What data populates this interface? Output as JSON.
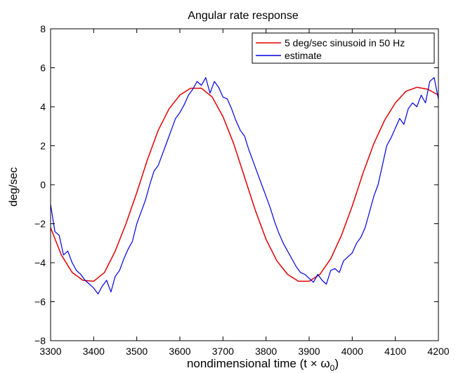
{
  "chart_data": {
    "type": "line",
    "title": "Angular rate response",
    "xlabel_main": "nondimensional time (t × ω",
    "xlabel_sub": "0",
    "xlabel_close": ")",
    "ylabel": "deg/sec",
    "xlim": [
      3300,
      4200
    ],
    "ylim": [
      -8,
      8
    ],
    "xticks": [
      3300,
      3400,
      3500,
      3600,
      3700,
      3800,
      3900,
      4000,
      4100,
      4200
    ],
    "yticks": [
      -8,
      -6,
      -4,
      -2,
      0,
      2,
      4,
      6,
      8
    ],
    "xtick_labels": [
      "3300",
      "3400",
      "3500",
      "3600",
      "3700",
      "3800",
      "3900",
      "4000",
      "4100",
      "4200"
    ],
    "ytick_labels": [
      "−8",
      "−6",
      "−4",
      "−2",
      "0",
      "2",
      "4",
      "6",
      "8"
    ],
    "grid": false,
    "legend_position": "top-right",
    "series": [
      {
        "name": "5 deg/sec sinusoid in 50 Hz",
        "color": "#e00000",
        "x": [
          3300,
          3325,
          3350,
          3375,
          3400,
          3425,
          3450,
          3475,
          3500,
          3525,
          3550,
          3575,
          3600,
          3625,
          3650,
          3675,
          3700,
          3725,
          3750,
          3775,
          3800,
          3825,
          3850,
          3875,
          3900,
          3925,
          3950,
          3975,
          4000,
          4025,
          4050,
          4075,
          4100,
          4125,
          4150,
          4175,
          4200
        ],
        "y": [
          -2.2,
          -3.6,
          -4.5,
          -4.9,
          -4.95,
          -4.5,
          -3.4,
          -2.0,
          -0.4,
          1.3,
          2.8,
          3.9,
          4.6,
          4.95,
          4.95,
          4.5,
          3.5,
          2.1,
          0.4,
          -1.3,
          -2.8,
          -3.9,
          -4.6,
          -4.95,
          -4.95,
          -4.6,
          -3.8,
          -2.6,
          -1.1,
          0.6,
          2.1,
          3.3,
          4.2,
          4.8,
          5.0,
          4.9,
          4.6
        ]
      },
      {
        "name": "estimate",
        "color": "#0000e0",
        "x": [
          3300,
          3310,
          3320,
          3330,
          3340,
          3350,
          3360,
          3370,
          3380,
          3390,
          3400,
          3410,
          3420,
          3430,
          3440,
          3450,
          3460,
          3470,
          3480,
          3490,
          3500,
          3510,
          3520,
          3530,
          3540,
          3550,
          3560,
          3570,
          3580,
          3590,
          3600,
          3610,
          3620,
          3630,
          3640,
          3650,
          3660,
          3670,
          3680,
          3690,
          3700,
          3710,
          3720,
          3730,
          3740,
          3750,
          3760,
          3770,
          3780,
          3790,
          3800,
          3810,
          3820,
          3830,
          3840,
          3850,
          3860,
          3870,
          3880,
          3890,
          3900,
          3910,
          3920,
          3930,
          3940,
          3950,
          3960,
          3970,
          3980,
          3990,
          4000,
          4010,
          4020,
          4030,
          4040,
          4050,
          4060,
          4070,
          4080,
          4090,
          4100,
          4110,
          4120,
          4130,
          4140,
          4150,
          4160,
          4170,
          4180,
          4190,
          4200
        ],
        "y": [
          -1.0,
          -2.4,
          -2.6,
          -3.6,
          -3.4,
          -4.0,
          -4.4,
          -4.6,
          -4.9,
          -5.1,
          -5.3,
          -5.6,
          -5.2,
          -4.9,
          -5.5,
          -4.7,
          -4.4,
          -3.8,
          -3.3,
          -2.9,
          -2.0,
          -1.4,
          -0.8,
          0.0,
          0.7,
          1.0,
          1.6,
          2.2,
          2.8,
          3.4,
          3.7,
          4.1,
          4.6,
          4.9,
          5.3,
          5.1,
          5.5,
          4.7,
          5.3,
          5.0,
          4.5,
          4.4,
          3.9,
          3.3,
          2.8,
          2.5,
          1.8,
          1.2,
          0.6,
          0.0,
          -0.6,
          -1.2,
          -1.9,
          -2.5,
          -3.0,
          -3.4,
          -3.8,
          -4.2,
          -4.5,
          -4.6,
          -4.8,
          -5.0,
          -4.6,
          -4.9,
          -5.1,
          -4.4,
          -4.3,
          -4.5,
          -3.9,
          -3.7,
          -3.5,
          -3.0,
          -2.7,
          -2.2,
          -1.4,
          -0.6,
          0.0,
          1.0,
          2.0,
          2.4,
          2.9,
          3.4,
          3.1,
          3.9,
          4.2,
          4.0,
          4.6,
          4.2,
          5.3,
          5.5,
          4.4
        ]
      }
    ]
  }
}
